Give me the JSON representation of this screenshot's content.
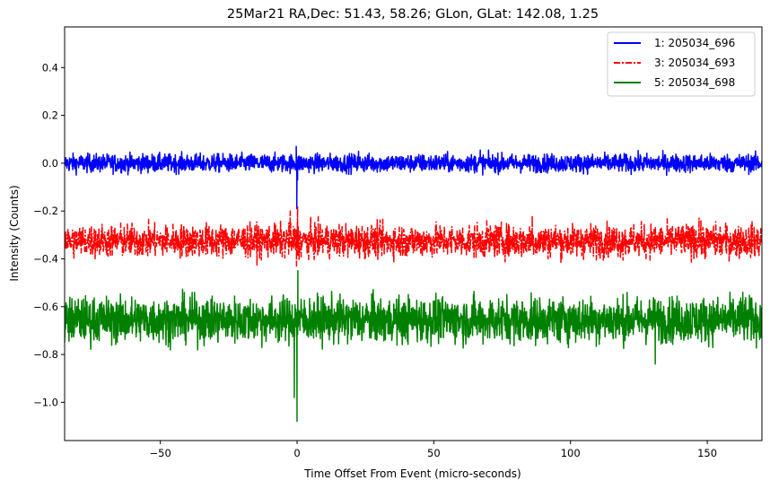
{
  "chart_data": {
    "type": "line",
    "title": "25Mar21 RA,Dec:   51.43,  58.26; GLon, GLat:  142.08,   1.25",
    "xlabel": "Time Offset From Event (micro-seconds)",
    "ylabel": "Intensity (Counts)",
    "xlim": [
      -85,
      170
    ],
    "ylim": [
      -1.16,
      0.57
    ],
    "xticks": [
      -50,
      0,
      50,
      100,
      150
    ],
    "yticks": [
      -1.0,
      -0.8,
      -0.6,
      -0.4,
      -0.2,
      0.0,
      0.2,
      0.4
    ],
    "xtick_labels": [
      "−50",
      "0",
      "50",
      "100",
      "150"
    ],
    "ytick_labels": [
      "−1.0",
      "−0.8",
      "−0.6",
      "−0.4",
      "−0.2",
      "0.0",
      "0.2",
      "0.4"
    ],
    "grid": false,
    "legend_position": "top-right",
    "series": [
      {
        "name": "1: 205034_696",
        "color": "#0000ff",
        "linestyle": "solid",
        "baseline": 0.0,
        "noise_amplitude": 0.022,
        "spikes": [
          {
            "x": -0.3,
            "value": 0.07
          },
          {
            "x": -0.1,
            "value": -0.19
          },
          {
            "x": 0.2,
            "value": -0.07
          },
          {
            "x": 22.5,
            "value": 0.05
          },
          {
            "x": 67,
            "value": 0.055
          }
        ]
      },
      {
        "name": "3: 205034_693",
        "color": "#ff0000",
        "linestyle": "dashdot",
        "baseline": -0.325,
        "noise_amplitude": 0.04,
        "spikes": [
          {
            "x": 0.2,
            "value": -0.18
          },
          {
            "x": -0.2,
            "value": -0.43
          },
          {
            "x": -2.5,
            "value": -0.2
          },
          {
            "x": 86,
            "value": -0.22
          },
          {
            "x": 147,
            "value": -0.23
          }
        ]
      },
      {
        "name": "5: 205034_698",
        "color": "#008000",
        "linestyle": "solid",
        "baseline": -0.655,
        "noise_amplitude": 0.055,
        "spikes": [
          {
            "x": 0.3,
            "value": -0.45
          },
          {
            "x": 0.0,
            "value": -1.08
          },
          {
            "x": -1.0,
            "value": -0.98
          },
          {
            "x": 64.5,
            "value": -0.55
          },
          {
            "x": 131,
            "value": -0.84
          },
          {
            "x": 163,
            "value": -0.54
          }
        ]
      }
    ]
  }
}
